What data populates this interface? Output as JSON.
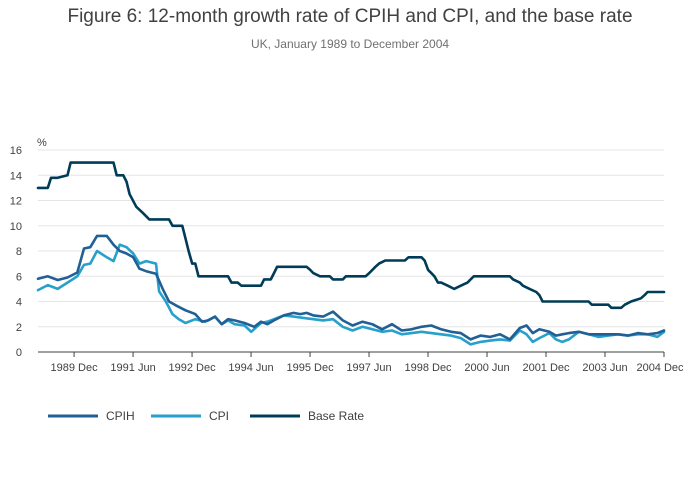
{
  "chart_data": {
    "type": "line",
    "title": "Figure 6: 12-month growth rate of CPIH and CPI, and the base rate",
    "subtitle": "UK, January 1989 to December 2004",
    "ylabel": "%",
    "ylim": [
      0,
      16
    ],
    "yticks": [
      0,
      2,
      4,
      6,
      8,
      10,
      12,
      14,
      16
    ],
    "xlim": [
      1989.0,
      2004.917
    ],
    "xticks": [
      {
        "x": 1989.917,
        "label": "1989 Dec"
      },
      {
        "x": 1991.417,
        "label": "1991 Jun"
      },
      {
        "x": 1992.917,
        "label": "1992 Dec"
      },
      {
        "x": 1994.417,
        "label": "1994 Jun"
      },
      {
        "x": 1995.917,
        "label": "1995 Dec"
      },
      {
        "x": 1997.417,
        "label": "1997 Jun"
      },
      {
        "x": 1998.917,
        "label": "1998 Dec"
      },
      {
        "x": 2000.417,
        "label": "2000 Jun"
      },
      {
        "x": 2001.917,
        "label": "2001 Dec"
      },
      {
        "x": 2003.417,
        "label": "2003 Jun"
      },
      {
        "x": 2004.917,
        "label": "2004 Dec"
      }
    ],
    "grid": true,
    "legend_position": "bottom-left",
    "series": [
      {
        "name": "CPIH",
        "color": "#206095",
        "points": [
          [
            1989.0,
            5.8
          ],
          [
            1989.25,
            6.0
          ],
          [
            1989.5,
            5.7
          ],
          [
            1989.75,
            5.9
          ],
          [
            1990.0,
            6.3
          ],
          [
            1990.17,
            8.2
          ],
          [
            1990.33,
            8.3
          ],
          [
            1990.5,
            9.2
          ],
          [
            1990.75,
            9.2
          ],
          [
            1990.92,
            8.5
          ],
          [
            1991.08,
            8.0
          ],
          [
            1991.25,
            7.8
          ],
          [
            1991.42,
            7.5
          ],
          [
            1991.58,
            6.6
          ],
          [
            1991.75,
            6.4
          ],
          [
            1992.0,
            6.2
          ],
          [
            1992.17,
            5.0
          ],
          [
            1992.33,
            4.0
          ],
          [
            1992.5,
            3.7
          ],
          [
            1992.75,
            3.3
          ],
          [
            1993.0,
            3.0
          ],
          [
            1993.17,
            2.4
          ],
          [
            1993.33,
            2.5
          ],
          [
            1993.5,
            2.8
          ],
          [
            1993.67,
            2.2
          ],
          [
            1993.83,
            2.6
          ],
          [
            1994.0,
            2.5
          ],
          [
            1994.25,
            2.3
          ],
          [
            1994.5,
            2.0
          ],
          [
            1994.67,
            2.4
          ],
          [
            1994.83,
            2.2
          ],
          [
            1995.0,
            2.5
          ],
          [
            1995.25,
            2.9
          ],
          [
            1995.5,
            3.1
          ],
          [
            1995.67,
            3.0
          ],
          [
            1995.83,
            3.1
          ],
          [
            1996.0,
            2.9
          ],
          [
            1996.25,
            2.8
          ],
          [
            1996.5,
            3.2
          ],
          [
            1996.75,
            2.5
          ],
          [
            1997.0,
            2.1
          ],
          [
            1997.25,
            2.4
          ],
          [
            1997.5,
            2.2
          ],
          [
            1997.75,
            1.8
          ],
          [
            1998.0,
            2.2
          ],
          [
            1998.25,
            1.7
          ],
          [
            1998.5,
            1.8
          ],
          [
            1998.75,
            2.0
          ],
          [
            1999.0,
            2.1
          ],
          [
            1999.25,
            1.8
          ],
          [
            1999.5,
            1.6
          ],
          [
            1999.75,
            1.5
          ],
          [
            2000.0,
            1.0
          ],
          [
            2000.25,
            1.3
          ],
          [
            2000.5,
            1.2
          ],
          [
            2000.75,
            1.4
          ],
          [
            2001.0,
            1.0
          ],
          [
            2001.25,
            1.9
          ],
          [
            2001.42,
            2.1
          ],
          [
            2001.58,
            1.5
          ],
          [
            2001.75,
            1.8
          ],
          [
            2002.0,
            1.6
          ],
          [
            2002.17,
            1.3
          ],
          [
            2002.33,
            1.4
          ],
          [
            2002.5,
            1.5
          ],
          [
            2002.75,
            1.6
          ],
          [
            2003.0,
            1.4
          ],
          [
            2003.25,
            1.4
          ],
          [
            2003.5,
            1.4
          ],
          [
            2003.75,
            1.4
          ],
          [
            2004.0,
            1.3
          ],
          [
            2004.25,
            1.5
          ],
          [
            2004.5,
            1.4
          ],
          [
            2004.75,
            1.5
          ],
          [
            2004.917,
            1.7
          ]
        ]
      },
      {
        "name": "CPI",
        "color": "#27a0cc",
        "points": [
          [
            1989.0,
            4.9
          ],
          [
            1989.25,
            5.3
          ],
          [
            1989.5,
            5.0
          ],
          [
            1989.75,
            5.5
          ],
          [
            1990.0,
            6.0
          ],
          [
            1990.17,
            6.9
          ],
          [
            1990.33,
            7.0
          ],
          [
            1990.5,
            8.0
          ],
          [
            1990.75,
            7.5
          ],
          [
            1990.92,
            7.2
          ],
          [
            1991.08,
            8.5
          ],
          [
            1991.25,
            8.3
          ],
          [
            1991.42,
            7.8
          ],
          [
            1991.58,
            7.0
          ],
          [
            1991.75,
            7.2
          ],
          [
            1992.0,
            7.0
          ],
          [
            1992.08,
            4.8
          ],
          [
            1992.25,
            4.0
          ],
          [
            1992.42,
            3.0
          ],
          [
            1992.58,
            2.6
          ],
          [
            1992.75,
            2.3
          ],
          [
            1993.0,
            2.6
          ],
          [
            1993.25,
            2.4
          ],
          [
            1993.5,
            2.8
          ],
          [
            1993.67,
            2.2
          ],
          [
            1993.83,
            2.5
          ],
          [
            1994.0,
            2.2
          ],
          [
            1994.25,
            2.1
          ],
          [
            1994.42,
            1.6
          ],
          [
            1994.67,
            2.3
          ],
          [
            1994.83,
            2.4
          ],
          [
            1995.0,
            2.6
          ],
          [
            1995.25,
            2.9
          ],
          [
            1995.5,
            2.8
          ],
          [
            1995.75,
            2.7
          ],
          [
            1996.0,
            2.6
          ],
          [
            1996.25,
            2.5
          ],
          [
            1996.5,
            2.6
          ],
          [
            1996.75,
            2.0
          ],
          [
            1997.0,
            1.7
          ],
          [
            1997.25,
            2.0
          ],
          [
            1997.5,
            1.8
          ],
          [
            1997.75,
            1.6
          ],
          [
            1998.0,
            1.7
          ],
          [
            1998.25,
            1.4
          ],
          [
            1998.5,
            1.5
          ],
          [
            1998.75,
            1.6
          ],
          [
            1999.0,
            1.5
          ],
          [
            1999.25,
            1.4
          ],
          [
            1999.5,
            1.3
          ],
          [
            1999.75,
            1.1
          ],
          [
            2000.0,
            0.6
          ],
          [
            2000.25,
            0.8
          ],
          [
            2000.5,
            0.9
          ],
          [
            2000.75,
            1.0
          ],
          [
            2001.0,
            0.9
          ],
          [
            2001.25,
            1.7
          ],
          [
            2001.42,
            1.4
          ],
          [
            2001.58,
            0.8
          ],
          [
            2001.75,
            1.1
          ],
          [
            2002.0,
            1.5
          ],
          [
            2002.17,
            1.0
          ],
          [
            2002.33,
            0.8
          ],
          [
            2002.5,
            1.0
          ],
          [
            2002.75,
            1.6
          ],
          [
            2003.0,
            1.4
          ],
          [
            2003.25,
            1.2
          ],
          [
            2003.5,
            1.3
          ],
          [
            2003.75,
            1.4
          ],
          [
            2004.0,
            1.3
          ],
          [
            2004.25,
            1.4
          ],
          [
            2004.5,
            1.4
          ],
          [
            2004.75,
            1.2
          ],
          [
            2004.917,
            1.6
          ]
        ]
      },
      {
        "name": "Base Rate",
        "color": "#003c57",
        "points": [
          [
            1989.0,
            13.0
          ],
          [
            1989.25,
            13.0
          ],
          [
            1989.33,
            13.8
          ],
          [
            1989.5,
            13.8
          ],
          [
            1989.75,
            14.0
          ],
          [
            1989.83,
            15.0
          ],
          [
            1990.5,
            15.0
          ],
          [
            1990.92,
            15.0
          ],
          [
            1991.0,
            14.0
          ],
          [
            1991.17,
            14.0
          ],
          [
            1991.25,
            13.5
          ],
          [
            1991.33,
            12.5
          ],
          [
            1991.5,
            11.5
          ],
          [
            1991.67,
            11.0
          ],
          [
            1991.83,
            10.5
          ],
          [
            1992.33,
            10.5
          ],
          [
            1992.42,
            10.0
          ],
          [
            1992.67,
            10.0
          ],
          [
            1992.75,
            9.0
          ],
          [
            1992.83,
            8.0
          ],
          [
            1992.92,
            7.0
          ],
          [
            1993.0,
            7.0
          ],
          [
            1993.08,
            6.0
          ],
          [
            1993.83,
            6.0
          ],
          [
            1993.92,
            5.5
          ],
          [
            1994.08,
            5.5
          ],
          [
            1994.17,
            5.25
          ],
          [
            1994.67,
            5.25
          ],
          [
            1994.75,
            5.75
          ],
          [
            1994.92,
            5.75
          ],
          [
            1995.0,
            6.25
          ],
          [
            1995.08,
            6.75
          ],
          [
            1995.83,
            6.75
          ],
          [
            1995.92,
            6.5
          ],
          [
            1996.0,
            6.25
          ],
          [
            1996.17,
            6.0
          ],
          [
            1996.42,
            6.0
          ],
          [
            1996.5,
            5.75
          ],
          [
            1996.75,
            5.75
          ],
          [
            1996.83,
            6.0
          ],
          [
            1997.33,
            6.0
          ],
          [
            1997.42,
            6.25
          ],
          [
            1997.58,
            6.75
          ],
          [
            1997.67,
            7.0
          ],
          [
            1997.83,
            7.25
          ],
          [
            1998.33,
            7.25
          ],
          [
            1998.42,
            7.5
          ],
          [
            1998.75,
            7.5
          ],
          [
            1998.83,
            7.25
          ],
          [
            1998.92,
            6.5
          ],
          [
            1999.0,
            6.25
          ],
          [
            1999.08,
            6.0
          ],
          [
            1999.17,
            5.5
          ],
          [
            1999.25,
            5.5
          ],
          [
            1999.42,
            5.25
          ],
          [
            1999.58,
            5.0
          ],
          [
            1999.75,
            5.25
          ],
          [
            1999.92,
            5.5
          ],
          [
            2000.0,
            5.75
          ],
          [
            2000.08,
            6.0
          ],
          [
            2001.0,
            6.0
          ],
          [
            2001.08,
            5.75
          ],
          [
            2001.25,
            5.5
          ],
          [
            2001.33,
            5.25
          ],
          [
            2001.5,
            5.0
          ],
          [
            2001.67,
            4.75
          ],
          [
            2001.75,
            4.5
          ],
          [
            2001.83,
            4.0
          ],
          [
            2003.0,
            4.0
          ],
          [
            2003.08,
            3.75
          ],
          [
            2003.5,
            3.75
          ],
          [
            2003.58,
            3.5
          ],
          [
            2003.83,
            3.5
          ],
          [
            2003.92,
            3.75
          ],
          [
            2004.08,
            4.0
          ],
          [
            2004.33,
            4.25
          ],
          [
            2004.42,
            4.5
          ],
          [
            2004.5,
            4.75
          ],
          [
            2004.917,
            4.75
          ]
        ]
      }
    ]
  }
}
